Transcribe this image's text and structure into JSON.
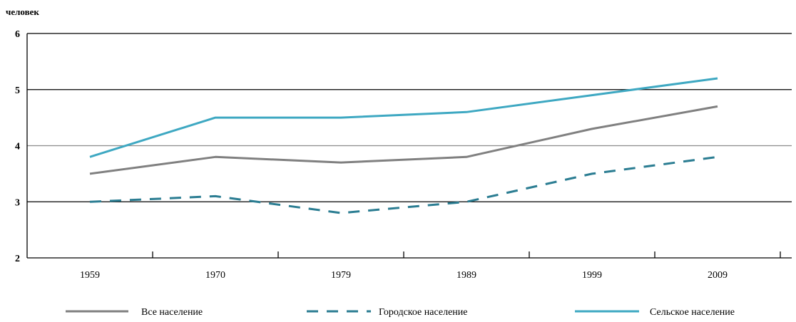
{
  "chart_data": {
    "type": "line",
    "ylabel": "человек",
    "x": [
      "1959",
      "1970",
      "1979",
      "1989",
      "1999",
      "2009"
    ],
    "ylim": [
      2,
      6
    ],
    "yticks": [
      2,
      3,
      4,
      5,
      6
    ],
    "grid": "horizontal",
    "legend_position": "bottom",
    "series": [
      {
        "name": "Все население",
        "values": [
          3.5,
          3.8,
          3.7,
          3.8,
          4.3,
          4.7
        ],
        "color": "#808080",
        "dash": "solid"
      },
      {
        "name": "Городское население",
        "values": [
          3.0,
          3.1,
          2.8,
          3.0,
          3.5,
          3.8
        ],
        "color": "#2b7d92",
        "dash": "dashed"
      },
      {
        "name": "Сельское население",
        "values": [
          3.8,
          4.5,
          4.5,
          4.6,
          4.9,
          5.2
        ],
        "color": "#3ea8c2",
        "dash": "solid"
      }
    ]
  }
}
